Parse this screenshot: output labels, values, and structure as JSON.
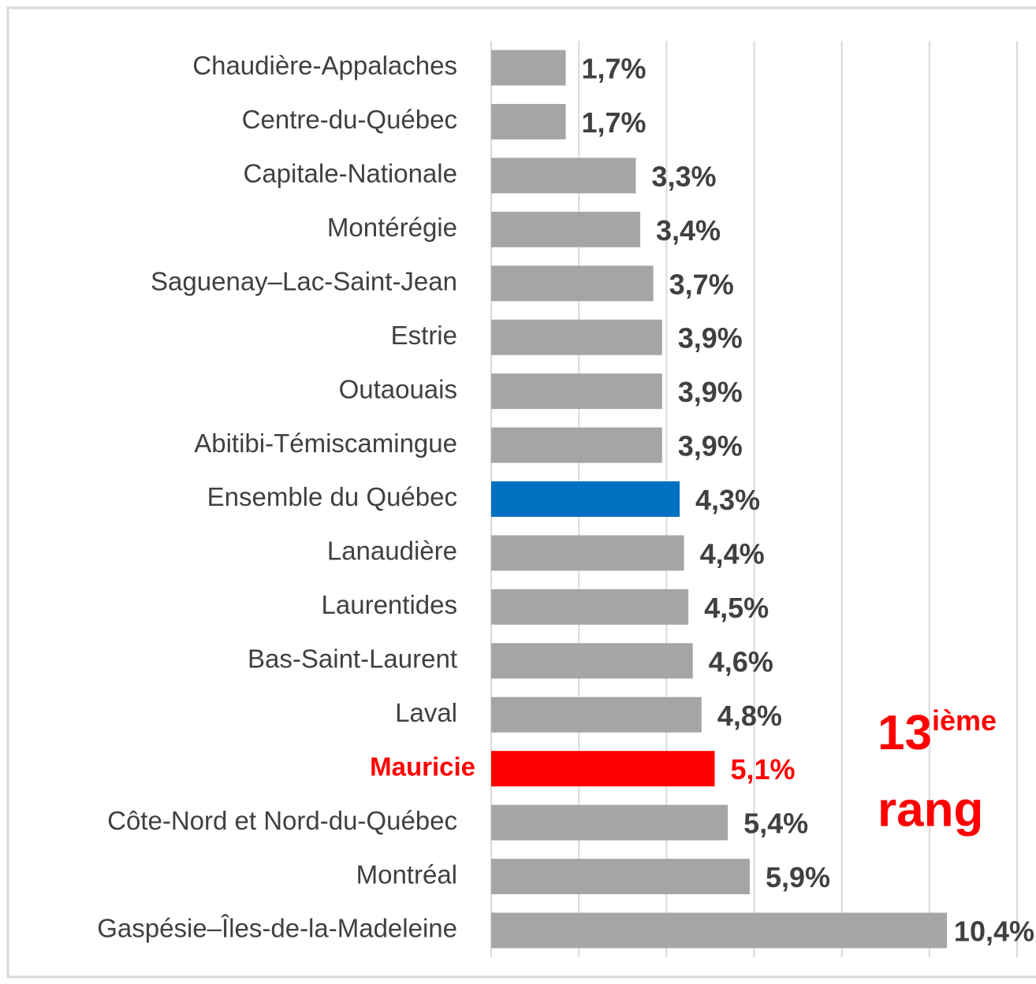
{
  "chart_data": {
    "type": "bar",
    "orientation": "horizontal",
    "categories": [
      "Chaudière-Appalaches",
      "Centre-du-Québec",
      "Capitale-Nationale",
      "Montérégie",
      "Saguenay–Lac-Saint-Jean",
      "Estrie",
      "Outaouais",
      "Abitibi-Témiscamingue",
      "Ensemble du Québec",
      "Lanaudière",
      "Laurentides",
      "Bas-Saint-Laurent",
      "Laval",
      "Mauricie",
      "Côte-Nord et Nord-du-Québec",
      "Montréal",
      "Gaspésie–Îles-de-la-Madeleine"
    ],
    "values": [
      1.7,
      1.7,
      3.3,
      3.4,
      3.7,
      3.9,
      3.9,
      3.9,
      4.3,
      4.4,
      4.5,
      4.6,
      4.8,
      5.1,
      5.4,
      5.9,
      10.4
    ],
    "value_labels": [
      "1,7%",
      "1,7%",
      "3,3%",
      "3,4%",
      "3,7%",
      "3,9%",
      "3,9%",
      "3,9%",
      "4,3%",
      "4,4%",
      "4,5%",
      "4,6%",
      "4,8%",
      "5,1%",
      "5,4%",
      "5,9%",
      "10,4%"
    ],
    "colors": [
      "#a5a5a5",
      "#a5a5a5",
      "#a5a5a5",
      "#a5a5a5",
      "#a5a5a5",
      "#a5a5a5",
      "#a5a5a5",
      "#a5a5a5",
      "#0070c0",
      "#a5a5a5",
      "#a5a5a5",
      "#a5a5a5",
      "#a5a5a5",
      "#ff0000",
      "#a5a5a5",
      "#a5a5a5",
      "#a5a5a5"
    ],
    "highlight": "Mauricie",
    "xlim": [
      0,
      12
    ],
    "xticks": [
      0,
      2,
      4,
      6,
      8,
      10,
      12
    ],
    "grid": true,
    "annotation": {
      "number": "13",
      "suffix": "ième",
      "text": "rang",
      "color": "#ff0000"
    }
  }
}
